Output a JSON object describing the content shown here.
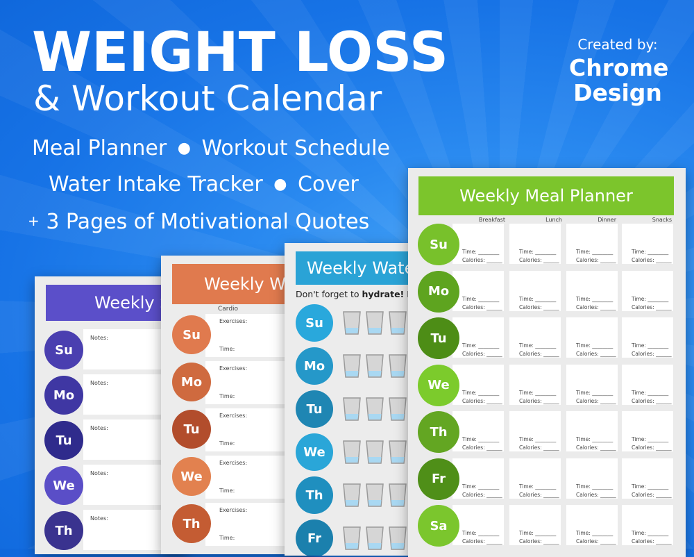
{
  "header": {
    "title": "WEIGHT LOSS",
    "subtitle": "& Workout Calendar",
    "created_by": "Created by:",
    "brand_line1": "Chrome",
    "brand_line2": "Design"
  },
  "features": {
    "line1_a": "Meal Planner",
    "line1_b": "Workout Schedule",
    "line2_a": "Water Intake Tracker",
    "line2_b": "Cover",
    "line3_plus": "+",
    "line3_text": "3 Pages of Motivational Quotes",
    "bullet": "●"
  },
  "colors": {
    "background": "#1a78ea",
    "purple": "#5b4fc9",
    "orange": "#e07a4e",
    "teal": "#2aa3d6",
    "green": "#7cc52c"
  },
  "sheet_schedule": {
    "banner": "Weekly Schedule",
    "notes_label": "Notes:",
    "days": [
      {
        "abbr": "Su",
        "color": "#4a3fb0"
      },
      {
        "abbr": "Mo",
        "color": "#3f37a3"
      },
      {
        "abbr": "Tu",
        "color": "#2f2b8c"
      },
      {
        "abbr": "We",
        "color": "#5a4ec7"
      },
      {
        "abbr": "Th",
        "color": "#3a338f"
      }
    ]
  },
  "sheet_workout": {
    "banner": "Weekly Workout",
    "column_label": "Cardio",
    "exercises_label": "Exercises:",
    "time_label": "Time:",
    "days": [
      {
        "abbr": "Su",
        "color": "#e07a4e"
      },
      {
        "abbr": "Mo",
        "color": "#cf6a3f"
      },
      {
        "abbr": "Tu",
        "color": "#b24d2c"
      },
      {
        "abbr": "We",
        "color": "#e2814f"
      },
      {
        "abbr": "Th",
        "color": "#c45c33"
      }
    ]
  },
  "sheet_water": {
    "banner": "Weekly Water",
    "hint_prefix": "Don't forget to ",
    "hint_bold": "hydrate!",
    "hint_suffix": " Dr",
    "days": [
      {
        "abbr": "Su",
        "color": "#29a8dc"
      },
      {
        "abbr": "Mo",
        "color": "#2598c9"
      },
      {
        "abbr": "Tu",
        "color": "#1f86b3"
      },
      {
        "abbr": "We",
        "color": "#2aa6d8"
      },
      {
        "abbr": "Th",
        "color": "#1f8fbf"
      },
      {
        "abbr": "Fr",
        "color": "#1b80ad"
      }
    ]
  },
  "sheet_meal": {
    "banner": "Weekly Meal Planner",
    "columns": [
      "Breakfast",
      "Lunch",
      "Dinner",
      "Snacks"
    ],
    "time_label": "Time: ________",
    "calories_label": "Calories: ______",
    "days": [
      {
        "abbr": "Su",
        "color": "#78c12b"
      },
      {
        "abbr": "Mo",
        "color": "#5ea41f"
      },
      {
        "abbr": "Tu",
        "color": "#4d8d16"
      },
      {
        "abbr": "We",
        "color": "#7ccb2c"
      },
      {
        "abbr": "Th",
        "color": "#63a622"
      },
      {
        "abbr": "Fr",
        "color": "#4f8f18"
      },
      {
        "abbr": "Sa",
        "color": "#7bc62d"
      }
    ]
  }
}
